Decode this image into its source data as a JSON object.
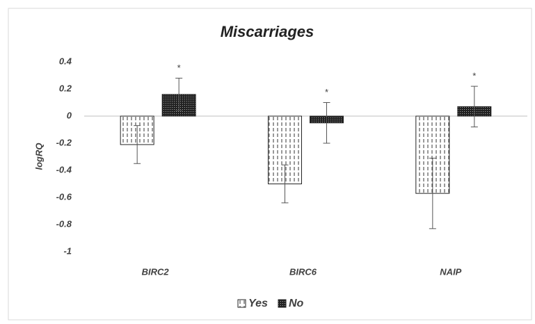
{
  "chart_data": {
    "type": "bar",
    "title": "Miscarriages",
    "y_axis_label": "logRQ",
    "categories": [
      "BIRC2",
      "BIRC6",
      "NAIP"
    ],
    "series": [
      {
        "name": "Yes",
        "color": "#ffffff",
        "values": [
          -0.21,
          -0.5,
          -0.57
        ],
        "errors": [
          0.14,
          0.14,
          0.26
        ]
      },
      {
        "name": "No",
        "color": "#333333",
        "values": [
          0.16,
          -0.05,
          0.07
        ],
        "errors": [
          0.12,
          0.15,
          0.15
        ]
      }
    ],
    "annotations": [
      "*",
      "*",
      "*"
    ],
    "ylim": [
      -1,
      0.4
    ],
    "yticks": [
      -1,
      -0.8,
      -0.6,
      -0.4,
      -0.2,
      0,
      0.2,
      0.4
    ],
    "grid": false,
    "legend": "bottom"
  }
}
